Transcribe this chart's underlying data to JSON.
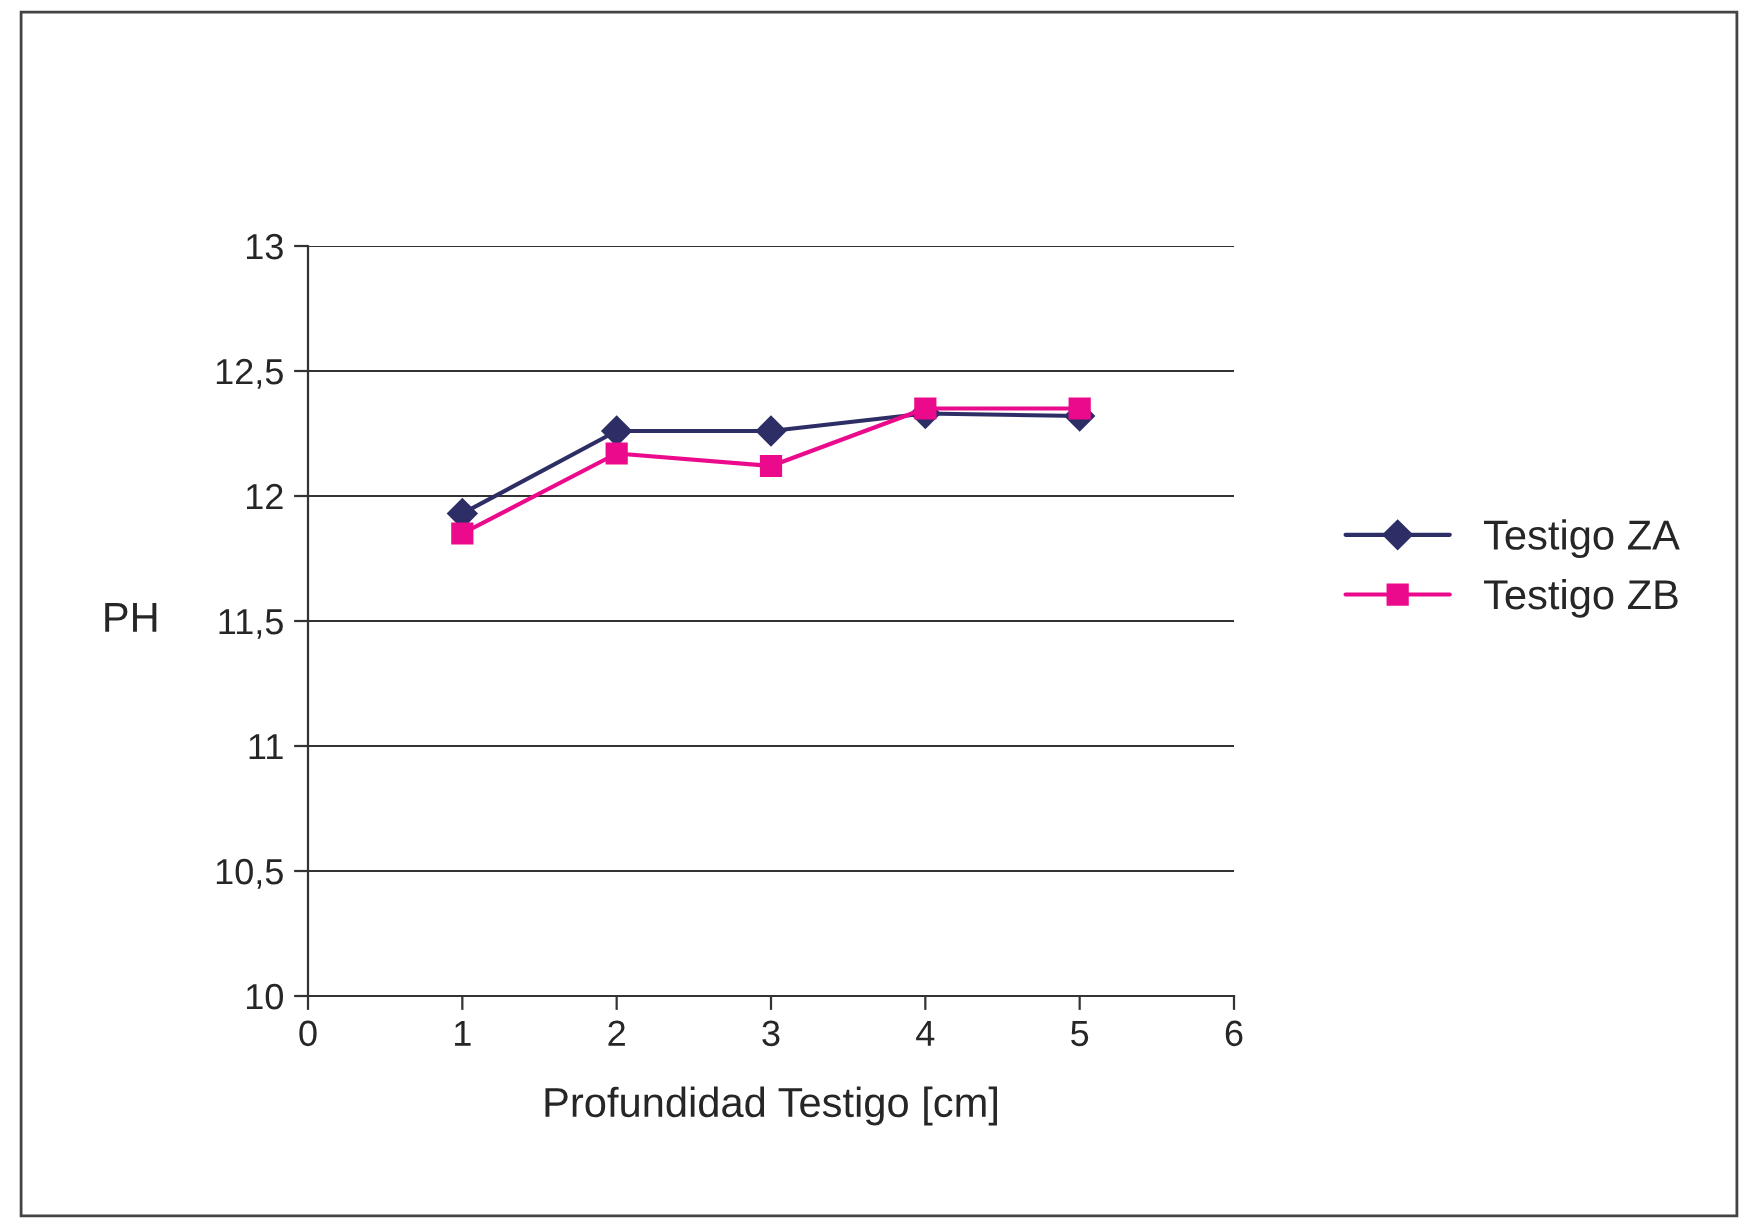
{
  "chart_data": {
    "type": "line",
    "xlabel": "Profundidad Testigo [cm]",
    "ylabel": "PH",
    "x": [
      1,
      2,
      3,
      4,
      5
    ],
    "series": [
      {
        "name": "Testigo ZA",
        "color": "#2e2e66",
        "marker": "diamond",
        "values": [
          11.93,
          12.26,
          12.26,
          12.33,
          12.32
        ]
      },
      {
        "name": "Testigo ZB",
        "color": "#ec0a8c",
        "marker": "square",
        "values": [
          11.85,
          12.17,
          12.12,
          12.35,
          12.35
        ]
      }
    ],
    "xlim": [
      0,
      6
    ],
    "xticks": [
      0,
      1,
      2,
      3,
      4,
      5,
      6
    ],
    "ylim": [
      10,
      13
    ],
    "yticks": [
      {
        "value": 10,
        "label": "10"
      },
      {
        "value": 10.5,
        "label": "10,5"
      },
      {
        "value": 11,
        "label": "11"
      },
      {
        "value": 11.5,
        "label": "11,5"
      },
      {
        "value": 12,
        "label": "12"
      },
      {
        "value": 12.5,
        "label": "12,5"
      },
      {
        "value": 13,
        "label": "13"
      }
    ],
    "grid": "y",
    "legend": "right"
  }
}
